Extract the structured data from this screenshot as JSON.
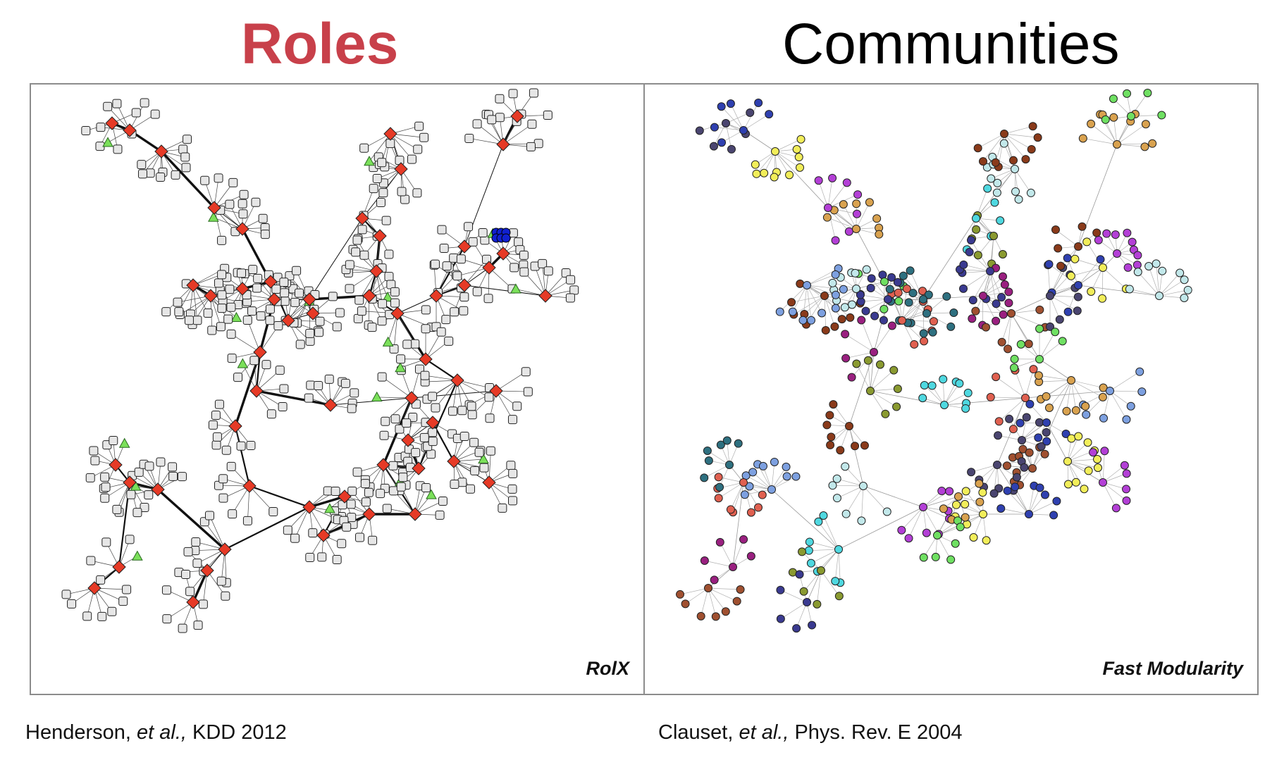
{
  "titles": {
    "roles": "Roles",
    "communities": "Communities"
  },
  "panels": {
    "left_label": "RolX",
    "right_label": "Fast Modularity"
  },
  "citations": {
    "left": {
      "authors": "Henderson, ",
      "etal": "et al.,",
      "venue": " KDD 2012"
    },
    "right": {
      "authors": "Clauset, ",
      "etal": "et al.,",
      "venue": " Phys. Rev. E 2004"
    }
  },
  "colors": {
    "roles_title": "#c8404a",
    "role_hub_diamond": "#e63a26",
    "role_periphery_square": "#e6e6e6",
    "role_triangle": "#7be05a",
    "role_clique": "#1020d0",
    "community_palette": [
      "#4a4570",
      "#2f40b0",
      "#f2ee5a",
      "#b33fd6",
      "#d9a24f",
      "#6fe062",
      "#c2e8ea",
      "#8a3a1a",
      "#7da0e0",
      "#e06050",
      "#2e7080",
      "#4fd8e0",
      "#8a9a30",
      "#3a3a90",
      "#9a2080",
      "#a05030"
    ]
  },
  "icons": {
    "role_hub": "diamond-icon",
    "role_periphery": "square-icon",
    "role_bridge": "triangle-icon"
  }
}
